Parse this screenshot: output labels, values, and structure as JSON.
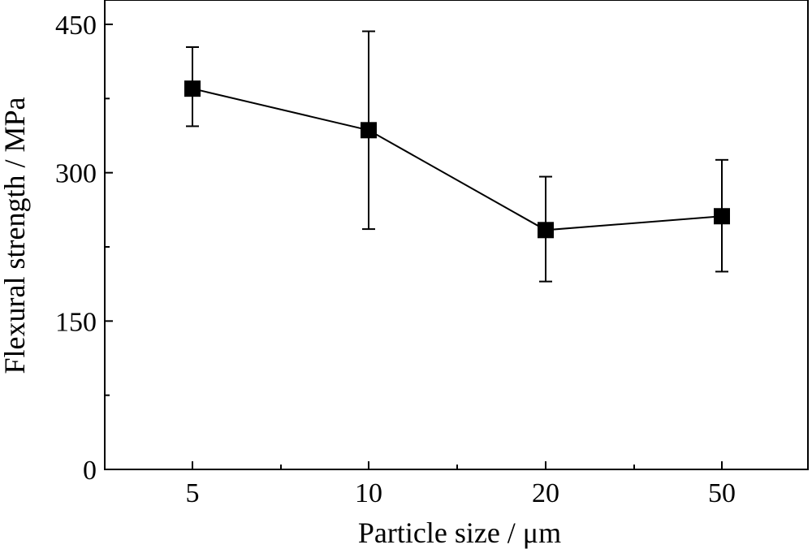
{
  "chart_data": {
    "type": "line",
    "categories": [
      "5",
      "10",
      "20",
      "50"
    ],
    "series": [
      {
        "values": [
          385,
          343,
          242,
          256
        ],
        "error_low": [
          347,
          243,
          190,
          200
        ],
        "error_high": [
          427,
          443,
          296,
          313
        ]
      }
    ],
    "xlabel": "Particle size / μm",
    "ylabel": "Flexural strength / MPa",
    "ylim": [
      0,
      450
    ],
    "yticks": [
      "0",
      "150",
      "300",
      "450"
    ],
    "grid": false,
    "legend": "none",
    "colors": {
      "line": "#000000",
      "marker": "#000000"
    }
  }
}
